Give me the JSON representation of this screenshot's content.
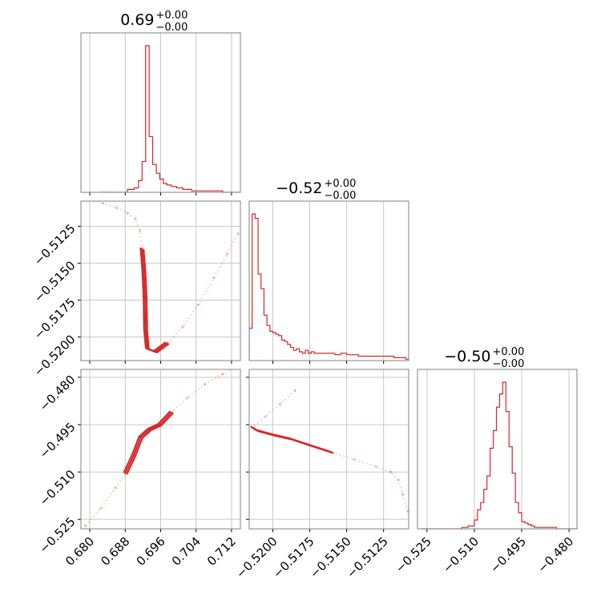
{
  "colors": {
    "series": "#d62728",
    "grid": "#c8c8c8",
    "frame": "#808080"
  },
  "chart_data": {
    "type": "corner",
    "grid": true,
    "params": [
      {
        "title_value": "0.69",
        "title_plus": "+0.00",
        "title_minus": "−0.00",
        "range": [
          0.678,
          0.714
        ],
        "ticks": [
          0.68,
          0.688,
          0.696,
          0.704,
          0.712
        ],
        "tick_labels": [
          "0.680",
          "0.688",
          "0.696",
          "0.704",
          "0.712"
        ]
      },
      {
        "title_value": "−0.52",
        "title_plus": "+0.00",
        "title_minus": "−0.00",
        "range": [
          -0.5216,
          -0.5108
        ],
        "ticks": [
          -0.52,
          -0.5175,
          -0.515,
          -0.5125
        ],
        "tick_labels": [
          "−0.5200",
          "−0.5175",
          "−0.5150",
          "−0.5125"
        ]
      },
      {
        "title_value": "−0.50",
        "title_plus": "+0.00",
        "title_minus": "−0.00",
        "range": [
          -0.528,
          -0.4775
        ],
        "ticks": [
          -0.525,
          -0.51,
          -0.495,
          -0.48
        ],
        "tick_labels": [
          "−0.525",
          "−0.510",
          "−0.495",
          "−0.480"
        ]
      }
    ],
    "histograms": [
      {
        "param": 0,
        "ymax": 1.0,
        "bins": [
          [
            0.682,
            0.0
          ],
          [
            0.6885,
            0.02
          ],
          [
            0.69,
            0.03
          ],
          [
            0.691,
            0.08
          ],
          [
            0.6918,
            0.21
          ],
          [
            0.6926,
            1.0
          ],
          [
            0.6934,
            0.38
          ],
          [
            0.6942,
            0.19
          ],
          [
            0.695,
            0.13
          ],
          [
            0.6958,
            0.09
          ],
          [
            0.6966,
            0.06
          ],
          [
            0.6974,
            0.05
          ],
          [
            0.6984,
            0.04
          ],
          [
            0.6996,
            0.03
          ],
          [
            0.701,
            0.02
          ],
          [
            0.703,
            0.01
          ],
          [
            0.705,
            0.01
          ],
          [
            0.71,
            0.0
          ],
          [
            0.714,
            0.0
          ]
        ]
      },
      {
        "param": 1,
        "ymax": 1.0,
        "bins": [
          [
            -0.5216,
            0.22
          ],
          [
            -0.5214,
            1.0
          ],
          [
            -0.5212,
            0.97
          ],
          [
            -0.521,
            0.59
          ],
          [
            -0.5208,
            0.49
          ],
          [
            -0.5206,
            0.31
          ],
          [
            -0.5204,
            0.24
          ],
          [
            -0.5202,
            0.2
          ],
          [
            -0.52,
            0.19
          ],
          [
            -0.5198,
            0.18
          ],
          [
            -0.5196,
            0.17
          ],
          [
            -0.5194,
            0.14
          ],
          [
            -0.5192,
            0.13
          ],
          [
            -0.519,
            0.11
          ],
          [
            -0.5188,
            0.09
          ],
          [
            -0.5186,
            0.07
          ],
          [
            -0.5184,
            0.08
          ],
          [
            -0.5182,
            0.06
          ],
          [
            -0.518,
            0.05
          ],
          [
            -0.5178,
            0.07
          ],
          [
            -0.5176,
            0.05
          ],
          [
            -0.5174,
            0.06
          ],
          [
            -0.5172,
            0.05
          ],
          [
            -0.517,
            0.05
          ],
          [
            -0.5166,
            0.05
          ],
          [
            -0.5162,
            0.05
          ],
          [
            -0.5158,
            0.04
          ],
          [
            -0.5154,
            0.05
          ],
          [
            -0.515,
            0.04
          ],
          [
            -0.5146,
            0.04
          ],
          [
            -0.5142,
            0.03
          ],
          [
            -0.5138,
            0.03
          ],
          [
            -0.5134,
            0.03
          ],
          [
            -0.513,
            0.03
          ],
          [
            -0.5126,
            0.03
          ],
          [
            -0.5122,
            0.03
          ],
          [
            -0.5118,
            0.02
          ],
          [
            -0.5114,
            0.02
          ],
          [
            -0.511,
            0.01
          ],
          [
            -0.5108,
            0.01
          ]
        ]
      },
      {
        "param": 2,
        "ymax": 1.0,
        "bins": [
          [
            -0.527,
            0.0
          ],
          [
            -0.524,
            0.0
          ],
          [
            -0.519,
            0.0
          ],
          [
            -0.514,
            0.01
          ],
          [
            -0.512,
            0.02
          ],
          [
            -0.51,
            0.06
          ],
          [
            -0.509,
            0.13
          ],
          [
            -0.508,
            0.18
          ],
          [
            -0.507,
            0.27
          ],
          [
            -0.506,
            0.36
          ],
          [
            -0.505,
            0.55
          ],
          [
            -0.504,
            0.67
          ],
          [
            -0.503,
            0.83
          ],
          [
            -0.502,
            0.92
          ],
          [
            -0.501,
            1.0
          ],
          [
            -0.5,
            0.8
          ],
          [
            -0.499,
            0.56
          ],
          [
            -0.498,
            0.38
          ],
          [
            -0.497,
            0.18
          ],
          [
            -0.496,
            0.11
          ],
          [
            -0.495,
            0.05
          ],
          [
            -0.494,
            0.04
          ],
          [
            -0.493,
            0.03
          ],
          [
            -0.492,
            0.02
          ],
          [
            -0.491,
            0.01
          ],
          [
            -0.49,
            0.01
          ],
          [
            -0.487,
            0.01
          ],
          [
            -0.484,
            0.0
          ],
          [
            -0.4775,
            0.0
          ]
        ]
      }
    ],
    "contours": [
      {
        "xparam": 0,
        "yparam": 1,
        "points": [
          [
            0.68,
            -0.5107
          ],
          [
            0.683,
            -0.51095
          ],
          [
            0.686,
            -0.51125
          ],
          [
            0.6885,
            -0.5116
          ],
          [
            0.6903,
            -0.512
          ],
          [
            0.6913,
            -0.5128
          ],
          [
            0.6918,
            -0.514
          ],
          [
            0.6922,
            -0.5155
          ],
          [
            0.6925,
            -0.5175
          ],
          [
            0.6926,
            -0.5195
          ],
          [
            0.693,
            -0.5208
          ],
          [
            0.6948,
            -0.521
          ],
          [
            0.6975,
            -0.5204
          ],
          [
            0.701,
            -0.5193
          ],
          [
            0.7045,
            -0.5178
          ],
          [
            0.708,
            -0.516
          ],
          [
            0.711,
            -0.5144
          ],
          [
            0.7135,
            -0.513
          ]
        ],
        "core_from": 6,
        "core_to": 12
      },
      {
        "xparam": 0,
        "yparam": 2,
        "points": [
          [
            0.679,
            -0.527
          ],
          [
            0.6825,
            -0.5215
          ],
          [
            0.6858,
            -0.515
          ],
          [
            0.688,
            -0.5105
          ],
          [
            0.69,
            -0.5045
          ],
          [
            0.6915,
            -0.499
          ],
          [
            0.6935,
            -0.4965
          ],
          [
            0.6958,
            -0.495
          ],
          [
            0.6985,
            -0.491
          ],
          [
            0.702,
            -0.4865
          ],
          [
            0.706,
            -0.4822
          ],
          [
            0.71,
            -0.479
          ],
          [
            0.714,
            -0.476
          ]
        ],
        "core_from": 3,
        "core_to": 8
      },
      {
        "xparam": 1,
        "yparam": 2,
        "points": [
          [
            -0.5185,
            -0.4842
          ],
          [
            -0.5195,
            -0.4885
          ],
          [
            -0.5205,
            -0.4924
          ],
          [
            -0.5214,
            -0.4958
          ],
          [
            -0.5211,
            -0.4968
          ],
          [
            -0.52,
            -0.4982
          ],
          [
            -0.5188,
            -0.4995
          ],
          [
            -0.5175,
            -0.5015
          ],
          [
            -0.516,
            -0.5038
          ],
          [
            -0.5145,
            -0.506
          ],
          [
            -0.513,
            -0.5083
          ],
          [
            -0.512,
            -0.51
          ],
          [
            -0.5115,
            -0.5125
          ],
          [
            -0.5112,
            -0.517
          ],
          [
            -0.51085,
            -0.5225
          ]
        ],
        "core_from": 3,
        "core_to": 8
      }
    ]
  }
}
